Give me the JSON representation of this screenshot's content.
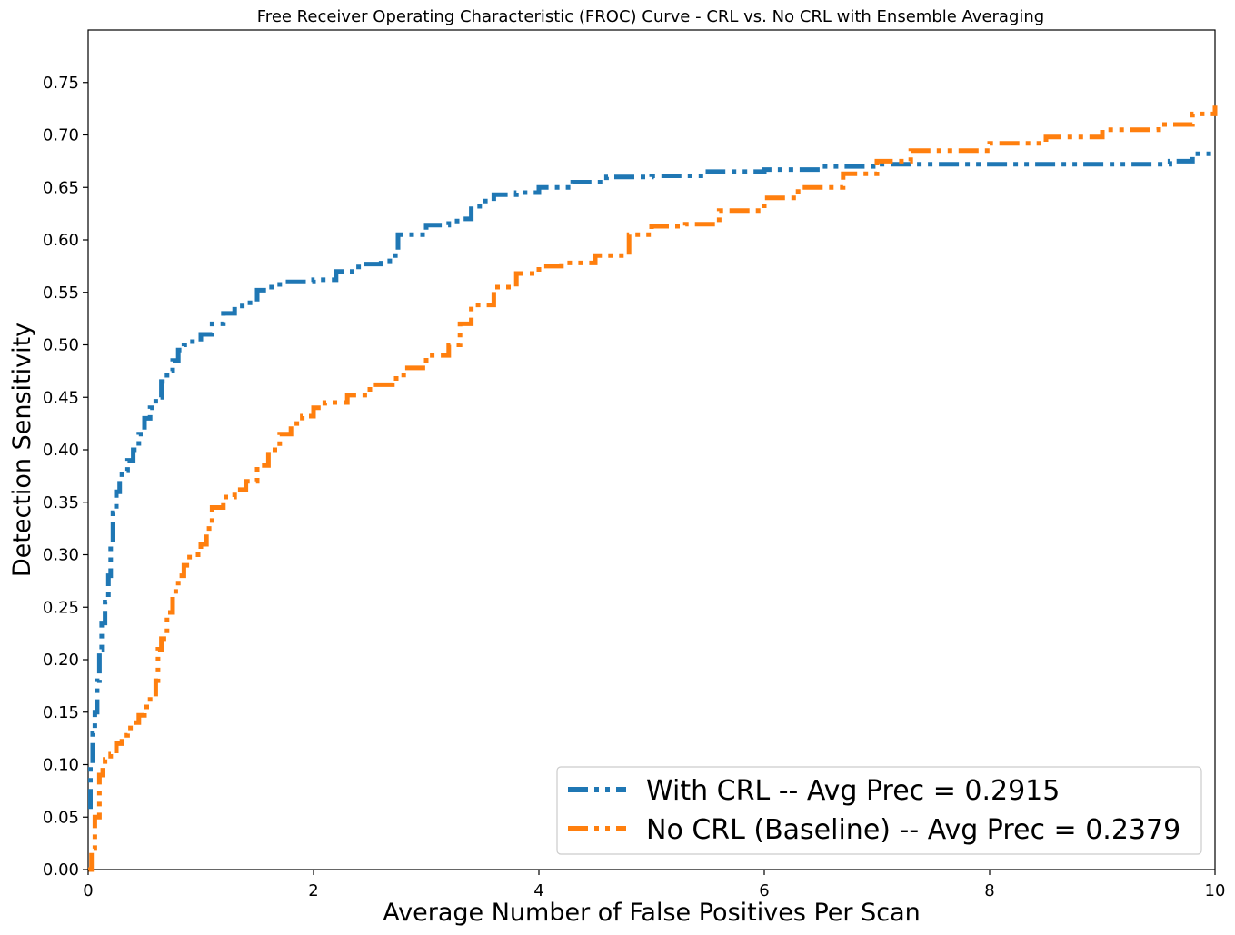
{
  "chart_data": {
    "type": "line",
    "title": "Free Receiver Operating Characteristic (FROC) Curve - CRL vs. No CRL with Ensemble Averaging",
    "xlabel": "Average Number of False Positives Per Scan",
    "ylabel": "Detection Sensitivity",
    "xlim": [
      0,
      10
    ],
    "ylim": [
      0,
      0.8
    ],
    "x_ticks": [
      0,
      2,
      4,
      6,
      8,
      10
    ],
    "x_tick_labels": [
      "0",
      "2",
      "4",
      "6",
      "8",
      "10"
    ],
    "y_ticks": [
      0,
      0.05,
      0.1,
      0.15,
      0.2,
      0.25,
      0.3,
      0.35,
      0.4,
      0.45,
      0.5,
      0.55,
      0.6,
      0.65,
      0.7,
      0.75
    ],
    "y_tick_labels": [
      "0.00",
      "0.05",
      "0.10",
      "0.15",
      "0.20",
      "0.25",
      "0.30",
      "0.35",
      "0.40",
      "0.45",
      "0.50",
      "0.55",
      "0.60",
      "0.65",
      "0.70",
      "0.75"
    ],
    "grid": false,
    "legend_position": "lower-right",
    "series": [
      {
        "name": "With CRL -- Avg Prec = 0.2915",
        "color": "#1f77b4",
        "x": [
          0,
          0.02,
          0.04,
          0.06,
          0.08,
          0.1,
          0.12,
          0.15,
          0.18,
          0.2,
          0.22,
          0.25,
          0.28,
          0.3,
          0.35,
          0.4,
          0.45,
          0.5,
          0.55,
          0.6,
          0.65,
          0.7,
          0.75,
          0.8,
          0.85,
          0.9,
          1.0,
          1.1,
          1.2,
          1.3,
          1.4,
          1.5,
          1.6,
          1.7,
          2.0,
          2.2,
          2.4,
          2.6,
          2.7,
          2.75,
          3.0,
          3.2,
          3.3,
          3.4,
          3.5,
          3.6,
          3.8,
          4.0,
          4.3,
          4.6,
          5.0,
          5.5,
          6.0,
          6.5,
          7.0,
          8.0,
          9.0,
          9.6,
          9.8,
          10.0
        ],
        "y": [
          0.06,
          0.1,
          0.13,
          0.15,
          0.18,
          0.21,
          0.235,
          0.255,
          0.28,
          0.31,
          0.34,
          0.36,
          0.372,
          0.38,
          0.39,
          0.4,
          0.415,
          0.43,
          0.44,
          0.45,
          0.465,
          0.475,
          0.485,
          0.495,
          0.5,
          0.503,
          0.51,
          0.52,
          0.53,
          0.537,
          0.54,
          0.552,
          0.555,
          0.56,
          0.562,
          0.57,
          0.577,
          0.58,
          0.585,
          0.605,
          0.614,
          0.618,
          0.62,
          0.632,
          0.637,
          0.643,
          0.645,
          0.65,
          0.655,
          0.66,
          0.661,
          0.665,
          0.667,
          0.67,
          0.672,
          0.672,
          0.672,
          0.675,
          0.682,
          0.684
        ]
      },
      {
        "name": "No CRL (Baseline) -- Avg Prec = 0.2379",
        "color": "#ff7f0e",
        "x": [
          0,
          0.03,
          0.06,
          0.1,
          0.13,
          0.15,
          0.2,
          0.25,
          0.3,
          0.35,
          0.4,
          0.45,
          0.5,
          0.55,
          0.6,
          0.62,
          0.65,
          0.7,
          0.75,
          0.8,
          0.85,
          0.9,
          1.0,
          1.05,
          1.1,
          1.2,
          1.3,
          1.4,
          1.5,
          1.6,
          1.7,
          1.8,
          1.9,
          2.0,
          2.1,
          2.3,
          2.5,
          2.7,
          2.8,
          3.0,
          3.2,
          3.3,
          3.4,
          3.6,
          3.8,
          4.0,
          4.2,
          4.5,
          4.8,
          5.0,
          5.3,
          5.6,
          6.0,
          6.3,
          6.7,
          7.0,
          7.3,
          7.7,
          8.0,
          8.5,
          9.0,
          9.5,
          9.8,
          10.0
        ],
        "y": [
          0.0,
          0.02,
          0.05,
          0.09,
          0.1,
          0.105,
          0.11,
          0.12,
          0.128,
          0.135,
          0.14,
          0.147,
          0.155,
          0.165,
          0.18,
          0.21,
          0.22,
          0.245,
          0.265,
          0.28,
          0.29,
          0.3,
          0.31,
          0.325,
          0.345,
          0.355,
          0.362,
          0.37,
          0.385,
          0.4,
          0.415,
          0.425,
          0.432,
          0.44,
          0.445,
          0.452,
          0.462,
          0.468,
          0.478,
          0.49,
          0.5,
          0.52,
          0.538,
          0.555,
          0.568,
          0.575,
          0.578,
          0.585,
          0.605,
          0.613,
          0.615,
          0.628,
          0.64,
          0.65,
          0.663,
          0.675,
          0.685,
          0.685,
          0.692,
          0.698,
          0.705,
          0.71,
          0.72,
          0.728
        ]
      }
    ]
  }
}
